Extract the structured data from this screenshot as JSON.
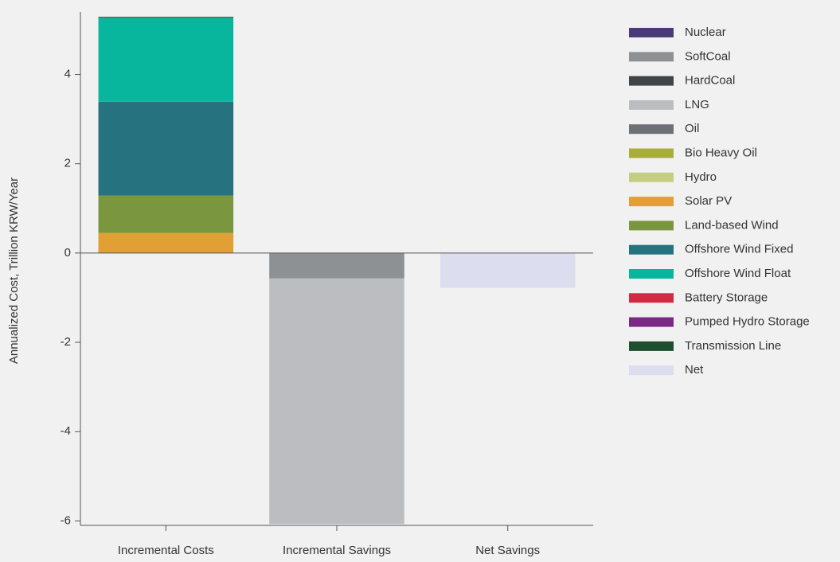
{
  "chart_data": {
    "type": "stacked-bar",
    "y_label": "Annualized Cost, Trillion KRW/Year",
    "categories": [
      "Incremental Costs",
      "Incremental Savings",
      "Net Savings"
    ],
    "ylim": [
      -6.1,
      5.4
    ],
    "yticks": [
      -6,
      -4,
      -2,
      0,
      2,
      4
    ],
    "series": [
      {
        "name": "Nuclear",
        "color": "#4b3a78",
        "values": [
          0,
          0,
          0
        ]
      },
      {
        "name": "SoftCoal",
        "color": "#8e9194",
        "values": [
          0,
          -0.57,
          0
        ]
      },
      {
        "name": "HardCoal",
        "color": "#404446",
        "values": [
          0,
          0,
          0
        ]
      },
      {
        "name": "LNG",
        "color": "#bcbdc1",
        "values": [
          0,
          -5.5,
          0
        ]
      },
      {
        "name": "Oil",
        "color": "#6d7074",
        "values": [
          0,
          0,
          0
        ]
      },
      {
        "name": "Bio Heavy Oil",
        "color": "#a9ae3a",
        "values": [
          0,
          0,
          0
        ]
      },
      {
        "name": "Hydro",
        "color": "#c5cd82",
        "values": [
          0,
          0,
          0
        ]
      },
      {
        "name": "Solar PV",
        "color": "#e1a033",
        "values": [
          0.45,
          0,
          0
        ]
      },
      {
        "name": "Land-based Wind",
        "color": "#7a963e",
        "values": [
          0.84,
          0,
          0
        ]
      },
      {
        "name": "Offshore Wind Fixed",
        "color": "#26727e",
        "values": [
          2.1,
          0,
          0
        ]
      },
      {
        "name": "Offshore Wind Float",
        "color": "#08b69e",
        "values": [
          1.88,
          0,
          0
        ]
      },
      {
        "name": "Battery Storage",
        "color": "#d32a44",
        "values": [
          0,
          0,
          0
        ]
      },
      {
        "name": "Pumped Hydro Storage",
        "color": "#7a2a84",
        "values": [
          0,
          0,
          0
        ]
      },
      {
        "name": "Transmission Line",
        "color": "#1e5030",
        "values": [
          0.02,
          0,
          0
        ]
      },
      {
        "name": "Net",
        "color": "#dcdef0",
        "values": [
          0,
          0,
          -0.78
        ]
      }
    ]
  }
}
